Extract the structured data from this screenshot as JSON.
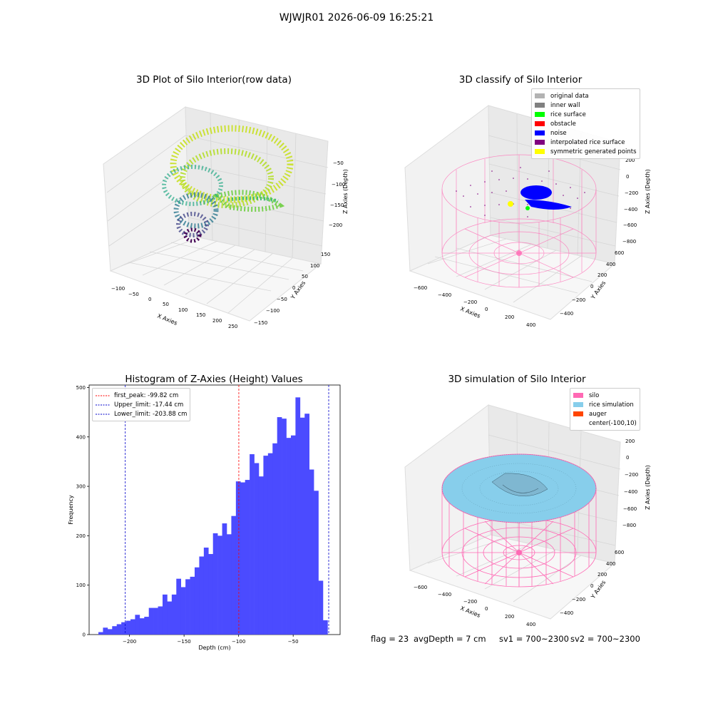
{
  "figure": {
    "suptitle": "WJWJR01 2026-06-09 16:25:21"
  },
  "panel_raw": {
    "title": "3D Plot of Silo Interior(row data)",
    "xlabel": "X Axies",
    "ylabel": "Y Axies",
    "zlabel": "Z Axies (Depth)",
    "xticks": [
      "−100",
      "−50",
      "0",
      "50",
      "100",
      "150",
      "200",
      "250"
    ],
    "yticks": [
      "−150",
      "−100",
      "−50",
      "0",
      "50",
      "100",
      "150"
    ],
    "zticks": [
      "−50",
      "−100",
      "−150",
      "−200"
    ]
  },
  "panel_classify": {
    "title": "3D classify of Silo Interior",
    "xlabel": "X Axies",
    "ylabel": "Y Axies",
    "zlabel": "Z Axies (Depth)",
    "xticks": [
      "−600",
      "−400",
      "−200",
      "0",
      "200",
      "400"
    ],
    "yticks": [
      "−400",
      "−200",
      "0",
      "200",
      "400",
      "600"
    ],
    "zticks": [
      "200",
      "0",
      "−200",
      "−400",
      "−600",
      "−800"
    ],
    "legend": [
      {
        "label": "original data",
        "color": "#b3b3b3"
      },
      {
        "label": "inner wall",
        "color": "#808080"
      },
      {
        "label": "rice surface",
        "color": "#00ff00"
      },
      {
        "label": "obstacle",
        "color": "#ff0000"
      },
      {
        "label": "noise",
        "color": "#0000ff"
      },
      {
        "label": "interpolated rice surface",
        "color": "#800080"
      },
      {
        "label": "symmetric generated points",
        "color": "#ffff00"
      }
    ]
  },
  "panel_sim": {
    "title": "3D simulation of Silo Interior",
    "xlabel": "X Axies",
    "ylabel": "Y Axies",
    "zlabel": "Z Axies (Depth)",
    "xticks": [
      "−600",
      "−400",
      "−200",
      "0",
      "200",
      "400"
    ],
    "yticks": [
      "−400",
      "−200",
      "0",
      "200",
      "400",
      "600"
    ],
    "zticks": [
      "200",
      "0",
      "−200",
      "−400",
      "−600",
      "−800"
    ],
    "legend": [
      {
        "label": "silo",
        "color": "#ff69b4"
      },
      {
        "label": "rice simulation",
        "color": "#87ceeb"
      },
      {
        "label": "auger",
        "color": "#ff4500"
      },
      {
        "label": "center(-100,10)",
        "color": ""
      }
    ]
  },
  "status": {
    "flag": "flag = 23",
    "avg_depth": "avgDepth = 7 cm",
    "sv1": "sv1 = 700~2300",
    "sv2": "sv2 = 700~2300"
  },
  "chart_data": [
    {
      "type": "scatter",
      "title": "3D Plot of Silo Interior(row data)",
      "xlabel": "X Axies",
      "ylabel": "Y Axies",
      "zlabel": "Z Axies (Depth)",
      "xlim": [
        -120,
        260
      ],
      "ylim": [
        -160,
        160
      ],
      "zlim": [
        -230,
        -20
      ],
      "colormap": "viridis (by depth)",
      "grid": true
    },
    {
      "type": "scatter",
      "title": "3D classify of Silo Interior",
      "xlabel": "X Axies",
      "ylabel": "Y Axies",
      "zlabel": "Z Axies (Depth)",
      "xlim": [
        -700,
        500
      ],
      "ylim": [
        -500,
        650
      ],
      "zlim": [
        -850,
        250
      ],
      "legend_position": "top-right",
      "series": [
        {
          "name": "original data"
        },
        {
          "name": "inner wall"
        },
        {
          "name": "rice surface"
        },
        {
          "name": "obstacle"
        },
        {
          "name": "noise"
        },
        {
          "name": "interpolated rice surface"
        },
        {
          "name": "symmetric generated points"
        }
      ],
      "grid": true
    },
    {
      "type": "bar",
      "title": "Histogram of Z-Axies (Height) Values",
      "xlabel": "Depth (cm)",
      "ylabel": "Frequency",
      "xlim": [
        -237,
        -7
      ],
      "ylim": [
        0,
        505
      ],
      "xticks": [
        -200,
        -150,
        -100,
        -50
      ],
      "yticks": [
        0,
        100,
        200,
        300,
        400,
        500
      ],
      "bin_start": -228.5,
      "bin_width": 4.2,
      "values": [
        5,
        14,
        11,
        17,
        21,
        25,
        28,
        31,
        40,
        33,
        36,
        54,
        54,
        57,
        81,
        67,
        81,
        113,
        96,
        112,
        117,
        136,
        158,
        176,
        163,
        205,
        200,
        225,
        203,
        240,
        310,
        308,
        313,
        365,
        347,
        320,
        362,
        367,
        387,
        440,
        437,
        398,
        403,
        480,
        439,
        447,
        334,
        291,
        109,
        29
      ],
      "lines": [
        {
          "name": "first_peak: -99.82 cm",
          "x": -99.82,
          "color": "#ff0000"
        },
        {
          "name": "Upper_limit: -17.44 cm",
          "x": -17.44,
          "color": "#0000cc"
        },
        {
          "name": "Lower_limit: -203.88 cm",
          "x": -203.88,
          "color": "#0000cc"
        }
      ],
      "legend_position": "top-left",
      "grid": false
    },
    {
      "type": "scatter",
      "title": "3D simulation of Silo Interior",
      "xlabel": "X Axies",
      "ylabel": "Y Axies",
      "zlabel": "Z Axies (Depth)",
      "xlim": [
        -700,
        500
      ],
      "ylim": [
        -500,
        650
      ],
      "zlim": [
        -850,
        250
      ],
      "legend_position": "top-right",
      "series": [
        {
          "name": "silo"
        },
        {
          "name": "rice simulation"
        },
        {
          "name": "auger"
        },
        {
          "name": "center(-100,10)"
        }
      ],
      "grid": true
    }
  ]
}
